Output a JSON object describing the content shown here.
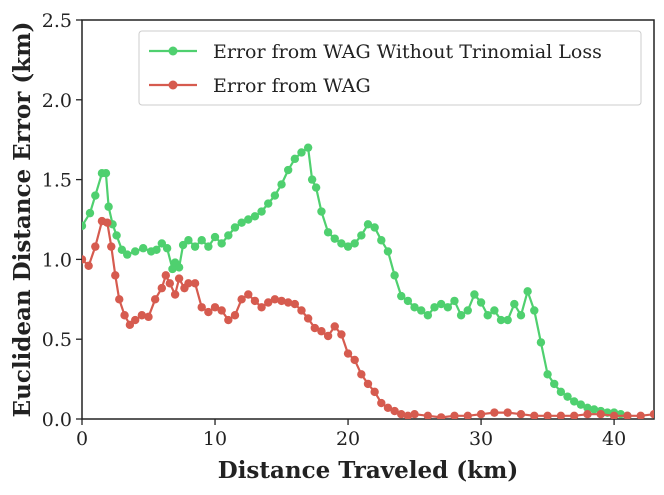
{
  "chart_data": {
    "type": "line",
    "title": "",
    "xlabel": "Distance Traveled (km)",
    "ylabel": "Euclidean Distance Error (km)",
    "xlim": [
      0,
      43
    ],
    "ylim": [
      0,
      2.5
    ],
    "xticks": [
      0,
      10,
      20,
      30,
      40
    ],
    "xtick_labels": [
      "0",
      "10",
      "20",
      "30",
      "40"
    ],
    "yticks": [
      0.0,
      0.5,
      1.0,
      1.5,
      2.0,
      2.5
    ],
    "ytick_labels": [
      "0.0",
      "0.5",
      "1.0",
      "1.5",
      "2.0",
      "2.5"
    ],
    "grid": false,
    "legend_position": "top-right",
    "series": [
      {
        "name": "Error from WAG Without Trinomial Loss",
        "color": "#4fd06f",
        "x": [
          0,
          0.6,
          1.0,
          1.5,
          1.8,
          2.0,
          2.3,
          2.6,
          3.0,
          3.4,
          4.0,
          4.6,
          5.2,
          5.6,
          6.0,
          6.4,
          6.8,
          7.0,
          7.3,
          7.6,
          8.0,
          8.5,
          9.0,
          9.5,
          10.0,
          10.5,
          11.0,
          11.5,
          12.0,
          12.5,
          13.0,
          13.5,
          14.0,
          14.5,
          15.0,
          15.5,
          16.0,
          16.5,
          17.0,
          17.3,
          17.6,
          18.0,
          18.5,
          19.0,
          19.5,
          20.0,
          20.5,
          21.0,
          21.5,
          22.0,
          22.5,
          23.0,
          23.5,
          24.0,
          24.5,
          25.0,
          25.5,
          26.0,
          26.5,
          27.0,
          27.5,
          28.0,
          28.5,
          29.0,
          29.5,
          30.0,
          30.5,
          31.0,
          31.5,
          32.0,
          32.5,
          33.0,
          33.5,
          34.0,
          34.5,
          35.0,
          35.5,
          36.0,
          36.5,
          37.0,
          37.5,
          38.0,
          38.5,
          39.0,
          39.5,
          40.0,
          40.5,
          41.0
        ],
        "values": [
          1.21,
          1.29,
          1.4,
          1.54,
          1.54,
          1.33,
          1.22,
          1.15,
          1.06,
          1.03,
          1.05,
          1.07,
          1.05,
          1.06,
          1.1,
          1.07,
          0.94,
          0.98,
          0.95,
          1.09,
          1.12,
          1.08,
          1.12,
          1.08,
          1.14,
          1.1,
          1.15,
          1.2,
          1.23,
          1.25,
          1.27,
          1.3,
          1.35,
          1.4,
          1.47,
          1.56,
          1.63,
          1.67,
          1.7,
          1.5,
          1.45,
          1.3,
          1.17,
          1.13,
          1.1,
          1.08,
          1.1,
          1.15,
          1.22,
          1.2,
          1.12,
          1.05,
          0.9,
          0.77,
          0.74,
          0.7,
          0.68,
          0.65,
          0.7,
          0.72,
          0.7,
          0.74,
          0.65,
          0.68,
          0.78,
          0.73,
          0.65,
          0.68,
          0.62,
          0.62,
          0.72,
          0.65,
          0.8,
          0.68,
          0.48,
          0.28,
          0.22,
          0.17,
          0.14,
          0.11,
          0.09,
          0.07,
          0.06,
          0.05,
          0.04,
          0.04,
          0.03,
          0.02
        ]
      },
      {
        "name": "Error from WAG",
        "color": "#d65b4f",
        "x": [
          0,
          0.5,
          1.0,
          1.5,
          1.9,
          2.2,
          2.5,
          2.8,
          3.2,
          3.6,
          4.0,
          4.5,
          5.0,
          5.5,
          6.0,
          6.3,
          6.6,
          7.0,
          7.3,
          7.7,
          8.0,
          8.5,
          9.0,
          9.5,
          10.0,
          10.5,
          11.0,
          11.5,
          12.0,
          12.5,
          13.0,
          13.5,
          14.0,
          14.5,
          15.0,
          15.5,
          16.0,
          16.5,
          17.0,
          17.5,
          18.0,
          18.5,
          19.0,
          19.5,
          20.0,
          20.5,
          21.0,
          21.5,
          22.0,
          22.5,
          23.0,
          23.5,
          24.0,
          24.5,
          25.0,
          26.0,
          27.0,
          28.0,
          29.0,
          30.0,
          31.0,
          32.0,
          33.0,
          34.0,
          35.0,
          36.0,
          37.0,
          38.0,
          39.0,
          40.0,
          41.0,
          42.0,
          43.0
        ],
        "values": [
          1.0,
          0.96,
          1.08,
          1.24,
          1.23,
          1.08,
          0.9,
          0.75,
          0.65,
          0.59,
          0.62,
          0.65,
          0.64,
          0.75,
          0.82,
          0.9,
          0.85,
          0.78,
          0.88,
          0.82,
          0.85,
          0.85,
          0.7,
          0.67,
          0.7,
          0.68,
          0.62,
          0.65,
          0.75,
          0.78,
          0.74,
          0.7,
          0.73,
          0.75,
          0.74,
          0.73,
          0.72,
          0.68,
          0.63,
          0.57,
          0.55,
          0.52,
          0.58,
          0.53,
          0.41,
          0.37,
          0.28,
          0.22,
          0.17,
          0.1,
          0.07,
          0.05,
          0.03,
          0.02,
          0.03,
          0.02,
          0.01,
          0.02,
          0.02,
          0.03,
          0.04,
          0.04,
          0.03,
          0.02,
          0.02,
          0.02,
          0.02,
          0.03,
          0.03,
          0.02,
          0.02,
          0.02,
          0.03
        ]
      }
    ]
  }
}
